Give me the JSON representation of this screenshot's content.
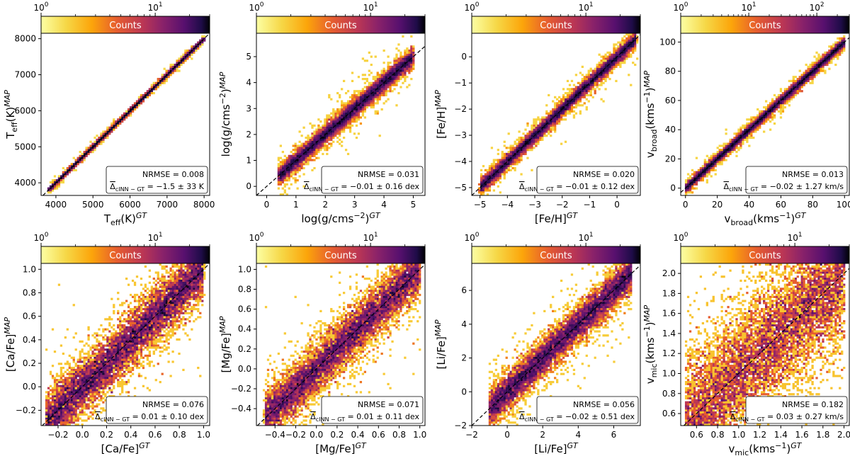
{
  "chart_data": [
    {
      "type": "heatmap",
      "xlabel": "T_eff(K)^GT",
      "ylabel": "T_eff(K)^MAP",
      "xlim": [
        3600,
        8150
      ],
      "ylim": [
        3650,
        8150
      ],
      "xticks": [
        4000,
        5000,
        6000,
        7000,
        8000
      ],
      "xtick_labels": [
        "4000",
        "5000",
        "6000",
        "7000",
        "8000"
      ],
      "yticks": [
        4000,
        5000,
        6000,
        7000,
        8000
      ],
      "ytick_labels": [
        "4000",
        "5000",
        "6000",
        "7000",
        "8000"
      ],
      "data_range": [
        3800,
        8000
      ],
      "scatter_frac": 0.005,
      "colorbar": {
        "label": "Counts",
        "scale": "log",
        "ticks": [
          1,
          10
        ],
        "tick_labels": [
          "10^0",
          "10^1"
        ],
        "range": [
          1,
          30
        ]
      },
      "stats": {
        "nrmse": "NRMSE = 0.008",
        "delta": "−1.5 ± 33 K"
      }
    },
    {
      "type": "heatmap",
      "xlabel": "log(g/cms^-2)^GT",
      "ylabel": "log(g/cms^-2)^MAP",
      "xlim": [
        -0.35,
        5.4
      ],
      "ylim": [
        -0.35,
        5.9
      ],
      "xticks": [
        0,
        1,
        2,
        3,
        4,
        5
      ],
      "xtick_labels": [
        "0",
        "1",
        "2",
        "3",
        "4",
        "5"
      ],
      "yticks": [
        0,
        1,
        2,
        3,
        4,
        5
      ],
      "ytick_labels": [
        "0",
        "1",
        "2",
        "3",
        "4",
        "5"
      ],
      "data_range": [
        0.4,
        5.0
      ],
      "scatter_frac": 0.031,
      "colorbar": {
        "label": "Counts",
        "scale": "log",
        "ticks": [
          1,
          10
        ],
        "tick_labels": [
          "10^0",
          "10^1"
        ],
        "range": [
          1,
          30
        ]
      },
      "stats": {
        "nrmse": "NRMSE = 0.031",
        "delta": "−0.01 ± 0.16 dex"
      }
    },
    {
      "type": "heatmap",
      "xlabel": "[Fe/H]^GT",
      "ylabel": "[Fe/H]^MAP",
      "xlim": [
        -5.3,
        0.85
      ],
      "ylim": [
        -5.3,
        0.9
      ],
      "xticks": [
        -5,
        -4,
        -3,
        -2,
        -1,
        0
      ],
      "xtick_labels": [
        "−5",
        "−4",
        "−3",
        "−2",
        "−1",
        "0"
      ],
      "yticks": [
        -5,
        -4,
        -3,
        -2,
        -1,
        0
      ],
      "ytick_labels": [
        "−5",
        "−4",
        "−3",
        "−2",
        "−1",
        "0"
      ],
      "data_range": [
        -5.0,
        0.7
      ],
      "scatter_frac": 0.02,
      "colorbar": {
        "label": "Counts",
        "scale": "log",
        "ticks": [
          1,
          10
        ],
        "tick_labels": [
          "10^0",
          "10^1"
        ],
        "range": [
          1,
          30
        ]
      },
      "stats": {
        "nrmse": "NRMSE = 0.020",
        "delta": "−0.01 ± 0.12 dex"
      }
    },
    {
      "type": "heatmap",
      "xlabel": "v_broad(kms^-1)^GT",
      "ylabel": "v_broad(kms^-1)^MAP",
      "xlim": [
        -3,
        103
      ],
      "ylim": [
        -5,
        106
      ],
      "xticks": [
        0,
        20,
        40,
        60,
        80,
        100
      ],
      "xtick_labels": [
        "0",
        "20",
        "40",
        "60",
        "80",
        "100"
      ],
      "yticks": [
        0,
        20,
        40,
        60,
        80,
        100
      ],
      "ytick_labels": [
        "0",
        "20",
        "40",
        "60",
        "80",
        "100"
      ],
      "data_range": [
        0,
        100
      ],
      "scatter_frac": 0.013,
      "colorbar": {
        "label": "Counts",
        "scale": "log",
        "ticks": [
          1,
          10,
          100
        ],
        "tick_labels": [
          "10^0",
          "10^1",
          "10^2"
        ],
        "range": [
          1,
          300
        ]
      },
      "stats": {
        "nrmse": "NRMSE = 0.013",
        "delta": "−0.02 ± 1.27 km/s"
      }
    },
    {
      "type": "heatmap",
      "xlabel": "[Ca/Fe]^GT",
      "ylabel": "[Ca/Fe]^MAP",
      "xlim": [
        -0.34,
        1.05
      ],
      "ylim": [
        -0.33,
        1.05
      ],
      "xticks": [
        -0.2,
        0.0,
        0.2,
        0.4,
        0.6,
        0.8,
        1.0
      ],
      "xtick_labels": [
        "−0.2",
        "0.0",
        "0.2",
        "0.4",
        "0.6",
        "0.8",
        "1.0"
      ],
      "yticks": [
        -0.2,
        0.0,
        0.2,
        0.4,
        0.6,
        0.8,
        1.0
      ],
      "ytick_labels": [
        "−0.2",
        "0.0",
        "0.2",
        "0.4",
        "0.6",
        "0.8",
        "1.0"
      ],
      "data_range": [
        -0.3,
        1.0
      ],
      "scatter_frac": 0.076,
      "colorbar": {
        "label": "Counts",
        "scale": "log",
        "ticks": [
          1,
          10
        ],
        "tick_labels": [
          "10^0",
          "10^1"
        ],
        "range": [
          1,
          30
        ]
      },
      "stats": {
        "nrmse": "NRMSE = 0.076",
        "delta": "0.01 ± 0.10 dex"
      }
    },
    {
      "type": "heatmap",
      "xlabel": "[Mg/Fe]^GT",
      "ylabel": "[Mg/Fe]^MAP",
      "xlim": [
        -0.58,
        1.05
      ],
      "ylim": [
        -0.57,
        1.06
      ],
      "xticks": [
        -0.4,
        -0.2,
        0.0,
        0.2,
        0.4,
        0.6,
        0.8,
        1.0
      ],
      "xtick_labels": [
        "−0.4",
        "−0.2",
        "0.0",
        "0.2",
        "0.4",
        "0.6",
        "0.8",
        "1.0"
      ],
      "yticks": [
        -0.4,
        -0.2,
        0.0,
        0.2,
        0.4,
        0.6,
        0.8,
        1.0
      ],
      "ytick_labels": [
        "−0.4",
        "−0.2",
        "0.0",
        "0.2",
        "0.4",
        "0.6",
        "0.8",
        "1.0"
      ],
      "data_range": [
        -0.5,
        1.0
      ],
      "scatter_frac": 0.071,
      "colorbar": {
        "label": "Counts",
        "scale": "log",
        "ticks": [
          1,
          10
        ],
        "tick_labels": [
          "10^0",
          "10^1"
        ],
        "range": [
          1,
          30
        ]
      },
      "stats": {
        "nrmse": "NRMSE = 0.071",
        "delta": "0.01 ± 0.11 dex"
      }
    },
    {
      "type": "heatmap",
      "xlabel": "[Li/Fe]^GT",
      "ylabel": "[Li/Fe]^MAP",
      "xlim": [
        -2,
        7.5
      ],
      "ylim": [
        -2,
        7.6
      ],
      "xticks": [
        -2,
        0,
        2,
        4,
        6
      ],
      "xtick_labels": [
        "−2",
        "0",
        "2",
        "4",
        "6"
      ],
      "yticks": [
        -2,
        0,
        2,
        4,
        6
      ],
      "ytick_labels": [
        "−2",
        "0",
        "2",
        "4",
        "6"
      ],
      "data_range": [
        -1,
        7
      ],
      "scatter_frac": 0.056,
      "colorbar": {
        "label": "Counts",
        "scale": "log",
        "ticks": [
          1,
          10
        ],
        "tick_labels": [
          "10^0",
          "10^1"
        ],
        "range": [
          1,
          30
        ]
      },
      "stats": {
        "nrmse": "NRMSE = 0.056",
        "delta": "−0.02 ± 0.51 dex"
      }
    },
    {
      "type": "heatmap",
      "xlabel": "v_mic(kms^-1)^GT",
      "ylabel": "v_mic(kms^-1)^MAP",
      "xlim": [
        0.45,
        2.05
      ],
      "ylim": [
        0.48,
        2.1
      ],
      "xticks": [
        0.6,
        0.8,
        1.0,
        1.2,
        1.4,
        1.6,
        1.8,
        2.0
      ],
      "xtick_labels": [
        "0.6",
        "0.8",
        "1.0",
        "1.2",
        "1.4",
        "1.6",
        "1.8",
        "2.0"
      ],
      "yticks": [
        0.6,
        0.8,
        1.0,
        1.2,
        1.4,
        1.6,
        1.8,
        2.0
      ],
      "ytick_labels": [
        "0.6",
        "0.8",
        "1.0",
        "1.2",
        "1.4",
        "1.6",
        "1.8",
        "2.0"
      ],
      "data_range": [
        0.5,
        2.0
      ],
      "scatter_frac": 0.182,
      "colorbar": {
        "label": "Counts",
        "scale": "log",
        "ticks": [
          1,
          10
        ],
        "tick_labels": [
          "10^0",
          "10^1"
        ],
        "range": [
          1,
          30
        ]
      },
      "stats": {
        "nrmse": "NRMSE = 0.182",
        "delta": "0.03 ± 0.27 km/s"
      }
    }
  ]
}
